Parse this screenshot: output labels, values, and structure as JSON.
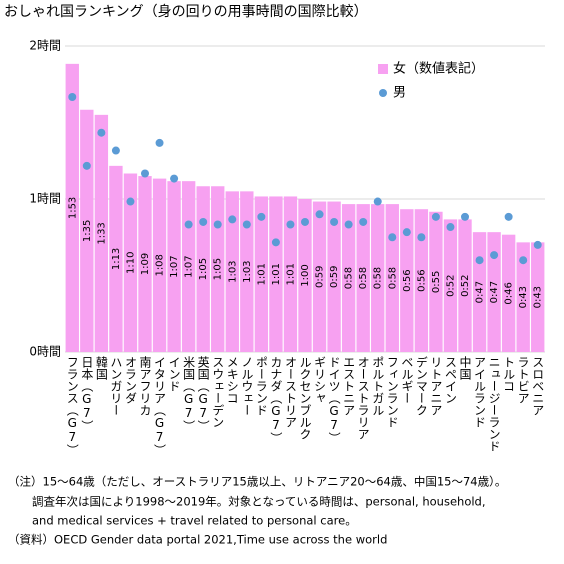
{
  "chart_data": {
    "type": "bar",
    "title": "おしゃれ国ランキング（身の回りの用事時間の国際比較）",
    "categories": [
      "フランス（G7）",
      "日本（G7）",
      "韓国",
      "ハンガリー",
      "オランダ",
      "南アフリカ",
      "イタリア（G7）",
      "インド",
      "米国（G7）",
      "英国（G7）",
      "スウェーデン",
      "メキシコ",
      "ノルウェー",
      "ポーランド",
      "カナダ（G7）",
      "オーストリア",
      "ルクセンブルク",
      "ギリシャ",
      "ドイツ（G7）",
      "エストニア",
      "オーストラリア",
      "ポルトガル",
      "フィンランド",
      "ベルギー",
      "デンマーク",
      "リトアニア",
      "スペイン",
      "中国",
      "アイルランド",
      "ニュージーランド",
      "トルコ",
      "ラトビア",
      "スロベニア"
    ],
    "series": [
      {
        "name": "女（数値表記）",
        "color": "#f7a1f1",
        "marker": "bar",
        "values": [
          113,
          95,
          93,
          73,
          70,
          69,
          68,
          67,
          67,
          65,
          65,
          63,
          63,
          61,
          61,
          61,
          60,
          59,
          59,
          58,
          58,
          58,
          58,
          56,
          56,
          55,
          52,
          52,
          47,
          47,
          46,
          43,
          43
        ],
        "value_labels": [
          "1:53",
          "1:35",
          "1:33",
          "1:13",
          "1:10",
          "1:09",
          "1:08",
          "1:07",
          "1:07",
          "1:05",
          "1:05",
          "1:03",
          "1:03",
          "1:01",
          "1:01",
          "1:01",
          "1:00",
          "0:59",
          "0:59",
          "0:58",
          "0:58",
          "0:58",
          "0:58",
          "0:56",
          "0:56",
          "0:55",
          "0:52",
          "0:52",
          "0:47",
          "0:47",
          "0:46",
          "0:43",
          "0:43"
        ]
      },
      {
        "name": "男",
        "color": "#5b9bd5",
        "marker": "dot",
        "values": [
          100,
          73,
          86,
          79,
          59,
          70,
          82,
          68,
          50,
          51,
          50,
          52,
          50,
          53,
          43,
          50,
          51,
          54,
          51,
          50,
          51,
          59,
          45,
          47,
          45,
          53,
          49,
          53,
          36,
          38,
          53,
          36,
          42
        ]
      }
    ],
    "ylim": [
      0,
      120
    ],
    "yticks": [
      {
        "value": 0,
        "label": "0時間"
      },
      {
        "value": 60,
        "label": "1時間"
      },
      {
        "value": 120,
        "label": "2時間"
      }
    ],
    "grid": true,
    "legend": "upper right",
    "notes": [
      "（注）15～64歳（ただし、オーストラリア15歳以上、リトアニア20～64歳、中国15～74歳）。",
      "調査年次は国により1998～2019年。対象となっている時間は、personal, household,",
      "and medical services + travel related to personal care。",
      "（資料）OECD Gender data portal 2021,Time  use across the world"
    ]
  }
}
